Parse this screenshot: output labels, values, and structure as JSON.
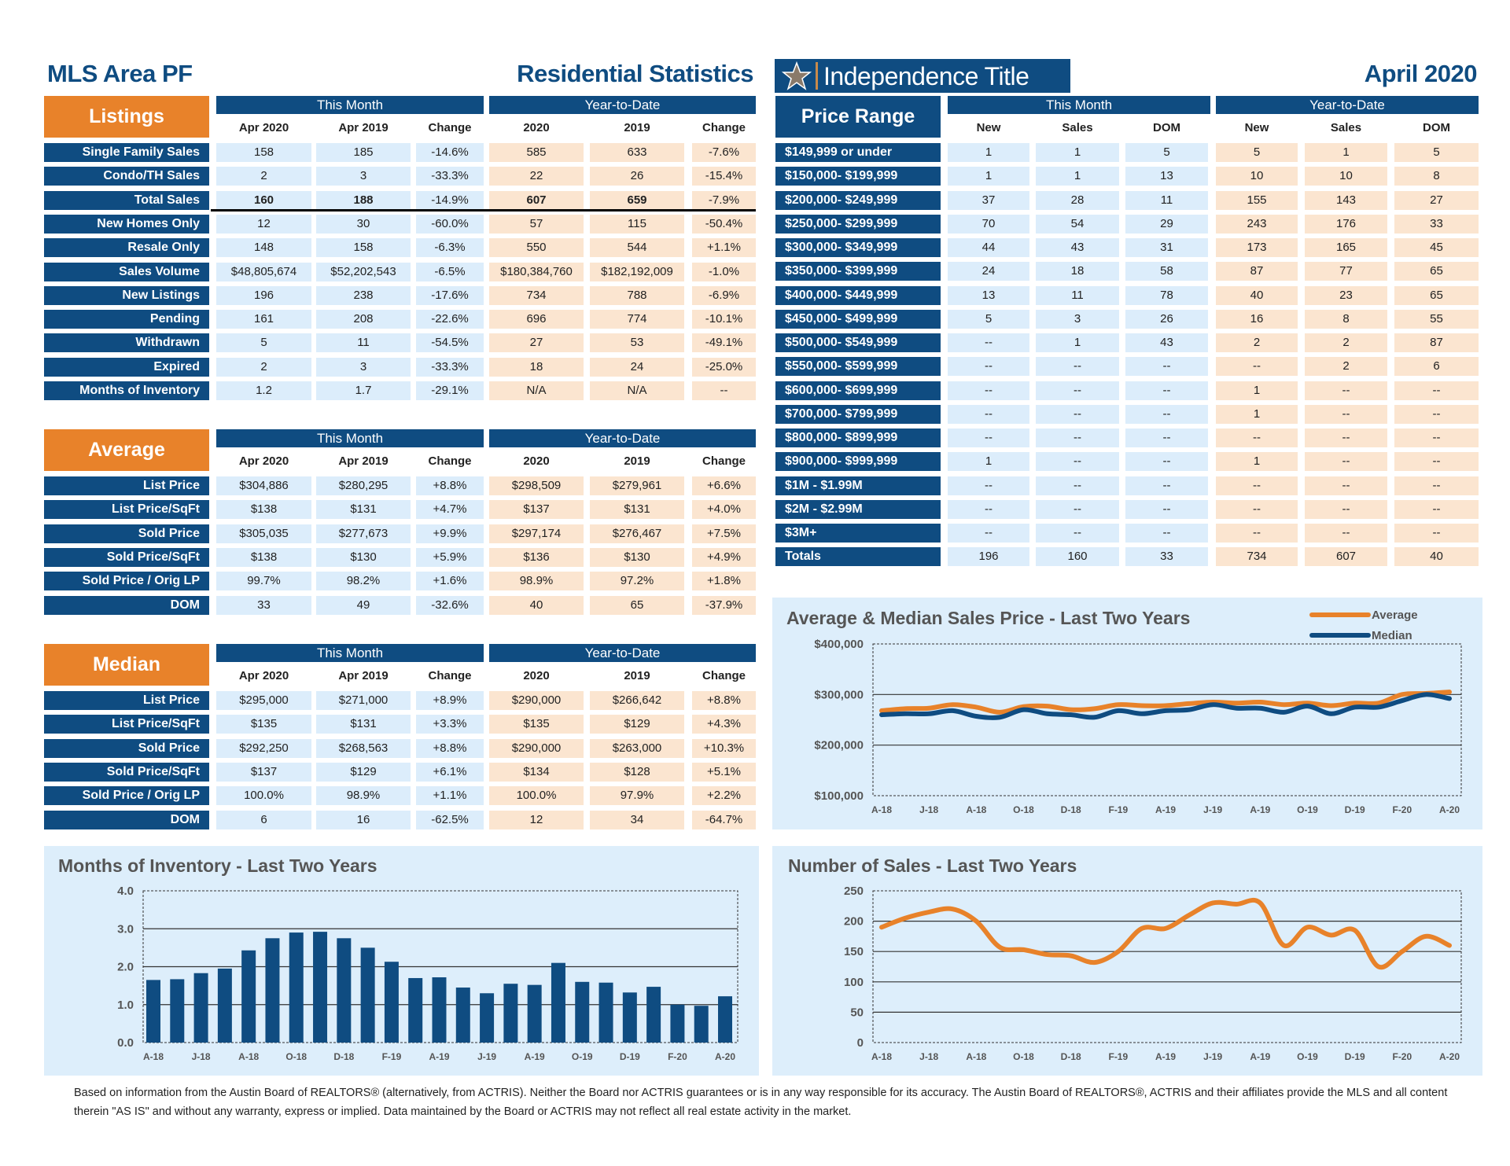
{
  "header": {
    "area": "MLS Area PF",
    "title": "Residential Statistics",
    "brand": "Independence Title",
    "period": "April 2020"
  },
  "colors": {
    "navy": "#0f4c81",
    "orange": "#e8822a",
    "this_month_cell": "#dcedfb",
    "ytd_cell": "#fbe5d0",
    "panel": "#ddeefb"
  },
  "listings": {
    "title": "Listings",
    "groups": [
      "This Month",
      "Year-to-Date"
    ],
    "columns": [
      "Apr 2020",
      "Apr 2019",
      "Change",
      "2020",
      "2019",
      "Change"
    ],
    "rows": [
      {
        "label": "Single Family Sales",
        "values": [
          "158",
          "185",
          "-14.6%",
          "585",
          "633",
          "-7.6%"
        ]
      },
      {
        "label": "Condo/TH Sales",
        "values": [
          "2",
          "3",
          "-33.3%",
          "22",
          "26",
          "-15.4%"
        ]
      },
      {
        "label": "Total Sales",
        "values": [
          "160",
          "188",
          "-14.9%",
          "607",
          "659",
          "-7.9%"
        ]
      },
      {
        "label": "New Homes Only",
        "values": [
          "12",
          "30",
          "-60.0%",
          "57",
          "115",
          "-50.4%"
        ]
      },
      {
        "label": "Resale Only",
        "values": [
          "148",
          "158",
          "-6.3%",
          "550",
          "544",
          "+1.1%"
        ]
      },
      {
        "label": "Sales Volume",
        "values": [
          "$48,805,674",
          "$52,202,543",
          "-6.5%",
          "$180,384,760",
          "$182,192,009",
          "-1.0%"
        ]
      },
      {
        "label": "New Listings",
        "values": [
          "196",
          "238",
          "-17.6%",
          "734",
          "788",
          "-6.9%"
        ]
      },
      {
        "label": "Pending",
        "values": [
          "161",
          "208",
          "-22.6%",
          "696",
          "774",
          "-10.1%"
        ]
      },
      {
        "label": "Withdrawn",
        "values": [
          "5",
          "11",
          "-54.5%",
          "27",
          "53",
          "-49.1%"
        ]
      },
      {
        "label": "Expired",
        "values": [
          "2",
          "3",
          "-33.3%",
          "18",
          "24",
          "-25.0%"
        ]
      },
      {
        "label": "Months of Inventory",
        "values": [
          "1.2",
          "1.7",
          "-29.1%",
          "N/A",
          "N/A",
          "--"
        ]
      }
    ]
  },
  "average": {
    "title": "Average",
    "groups": [
      "This Month",
      "Year-to-Date"
    ],
    "columns": [
      "Apr 2020",
      "Apr 2019",
      "Change",
      "2020",
      "2019",
      "Change"
    ],
    "rows": [
      {
        "label": "List Price",
        "values": [
          "$304,886",
          "$280,295",
          "+8.8%",
          "$298,509",
          "$279,961",
          "+6.6%"
        ]
      },
      {
        "label": "List Price/SqFt",
        "values": [
          "$138",
          "$131",
          "+4.7%",
          "$137",
          "$131",
          "+4.0%"
        ]
      },
      {
        "label": "Sold Price",
        "values": [
          "$305,035",
          "$277,673",
          "+9.9%",
          "$297,174",
          "$276,467",
          "+7.5%"
        ]
      },
      {
        "label": "Sold Price/SqFt",
        "values": [
          "$138",
          "$130",
          "+5.9%",
          "$136",
          "$130",
          "+4.9%"
        ]
      },
      {
        "label": "Sold Price / Orig LP",
        "values": [
          "99.7%",
          "98.2%",
          "+1.6%",
          "98.9%",
          "97.2%",
          "+1.8%"
        ]
      },
      {
        "label": "DOM",
        "values": [
          "33",
          "49",
          "-32.6%",
          "40",
          "65",
          "-37.9%"
        ]
      }
    ]
  },
  "median": {
    "title": "Median",
    "groups": [
      "This Month",
      "Year-to-Date"
    ],
    "columns": [
      "Apr 2020",
      "Apr 2019",
      "Change",
      "2020",
      "2019",
      "Change"
    ],
    "rows": [
      {
        "label": "List Price",
        "values": [
          "$295,000",
          "$271,000",
          "+8.9%",
          "$290,000",
          "$266,642",
          "+8.8%"
        ]
      },
      {
        "label": "List Price/SqFt",
        "values": [
          "$135",
          "$131",
          "+3.3%",
          "$135",
          "$129",
          "+4.3%"
        ]
      },
      {
        "label": "Sold Price",
        "values": [
          "$292,250",
          "$268,563",
          "+8.8%",
          "$290,000",
          "$263,000",
          "+10.3%"
        ]
      },
      {
        "label": "Sold Price/SqFt",
        "values": [
          "$137",
          "$129",
          "+6.1%",
          "$134",
          "$128",
          "+5.1%"
        ]
      },
      {
        "label": "Sold Price / Orig LP",
        "values": [
          "100.0%",
          "98.9%",
          "+1.1%",
          "100.0%",
          "97.9%",
          "+2.2%"
        ]
      },
      {
        "label": "DOM",
        "values": [
          "6",
          "16",
          "-62.5%",
          "12",
          "34",
          "-64.7%"
        ]
      }
    ]
  },
  "price_range": {
    "title": "Price Range",
    "groups": [
      "This Month",
      "Year-to-Date"
    ],
    "columns": [
      "New",
      "Sales",
      "DOM",
      "New",
      "Sales",
      "DOM"
    ],
    "rows": [
      {
        "label": "$149,999 or under",
        "values": [
          "1",
          "1",
          "5",
          "5",
          "1",
          "5"
        ]
      },
      {
        "label": "$150,000- $199,999",
        "values": [
          "1",
          "1",
          "13",
          "10",
          "10",
          "8"
        ]
      },
      {
        "label": "$200,000- $249,999",
        "values": [
          "37",
          "28",
          "11",
          "155",
          "143",
          "27"
        ]
      },
      {
        "label": "$250,000- $299,999",
        "values": [
          "70",
          "54",
          "29",
          "243",
          "176",
          "33"
        ]
      },
      {
        "label": "$300,000- $349,999",
        "values": [
          "44",
          "43",
          "31",
          "173",
          "165",
          "45"
        ]
      },
      {
        "label": "$350,000- $399,999",
        "values": [
          "24",
          "18",
          "58",
          "87",
          "77",
          "65"
        ]
      },
      {
        "label": "$400,000- $449,999",
        "values": [
          "13",
          "11",
          "78",
          "40",
          "23",
          "65"
        ]
      },
      {
        "label": "$450,000- $499,999",
        "values": [
          "5",
          "3",
          "26",
          "16",
          "8",
          "55"
        ]
      },
      {
        "label": "$500,000- $549,999",
        "values": [
          "--",
          "1",
          "43",
          "2",
          "2",
          "87"
        ]
      },
      {
        "label": "$550,000- $599,999",
        "values": [
          "--",
          "--",
          "--",
          "--",
          "2",
          "6"
        ]
      },
      {
        "label": "$600,000- $699,999",
        "values": [
          "--",
          "--",
          "--",
          "1",
          "--",
          "--"
        ]
      },
      {
        "label": "$700,000- $799,999",
        "values": [
          "--",
          "--",
          "--",
          "1",
          "--",
          "--"
        ]
      },
      {
        "label": "$800,000- $899,999",
        "values": [
          "--",
          "--",
          "--",
          "--",
          "--",
          "--"
        ]
      },
      {
        "label": "$900,000- $999,999",
        "values": [
          "1",
          "--",
          "--",
          "1",
          "--",
          "--"
        ]
      },
      {
        "label": "$1M - $1.99M",
        "values": [
          "--",
          "--",
          "--",
          "--",
          "--",
          "--"
        ]
      },
      {
        "label": "$2M - $2.99M",
        "values": [
          "--",
          "--",
          "--",
          "--",
          "--",
          "--"
        ]
      },
      {
        "label": "$3M+",
        "values": [
          "--",
          "--",
          "--",
          "--",
          "--",
          "--"
        ]
      },
      {
        "label": "Totals",
        "values": [
          "196",
          "160",
          "33",
          "734",
          "607",
          "40"
        ]
      }
    ]
  },
  "chart_data": [
    {
      "type": "line",
      "title": "Average & Median Sales Price - Last Two Years",
      "x": [
        "Apr 2018",
        "May 2018",
        "Jun 2018",
        "Jul 2018",
        "Aug 2018",
        "Sep 2018",
        "Oct 2018",
        "Nov 2018",
        "Dec 2018",
        "Jan 2019",
        "Feb 2019",
        "Mar 2019",
        "Apr 2019",
        "May 2019",
        "Jun 2019",
        "Jul 2019",
        "Aug 2019",
        "Sep 2019",
        "Oct 2019",
        "Nov 2019",
        "Dec 2019",
        "Jan 2020",
        "Feb 2020",
        "Mar 2020",
        "Apr 2020"
      ],
      "xtick_labels": [
        "A-18",
        "J-18",
        "A-18",
        "O-18",
        "D-18",
        "F-19",
        "A-19",
        "J-19",
        "A-19",
        "O-19",
        "D-19",
        "F-20",
        "A-20"
      ],
      "ytick_labels": [
        "$400,000",
        "$300,000",
        "$200,000",
        "$100,000"
      ],
      "ylim": [
        100000,
        400000
      ],
      "grid": true,
      "legend": "top-right",
      "series": [
        {
          "name": "Average",
          "color": "#e8822a",
          "values": [
            268000,
            272000,
            273000,
            280000,
            275000,
            265000,
            276000,
            277000,
            270000,
            272000,
            280000,
            278000,
            278000,
            282000,
            285000,
            283000,
            285000,
            280000,
            283000,
            278000,
            283000,
            283000,
            300000,
            302000,
            305000
          ]
        },
        {
          "name": "Median",
          "color": "#0f4c81",
          "values": [
            260000,
            262000,
            262000,
            268000,
            257000,
            255000,
            270000,
            262000,
            260000,
            255000,
            268000,
            262000,
            268000,
            270000,
            280000,
            273000,
            273000,
            265000,
            277000,
            262000,
            275000,
            275000,
            288000,
            300000,
            292000
          ]
        }
      ]
    },
    {
      "type": "bar",
      "title": "Months of Inventory - Last Two Years",
      "categories": [
        "Apr 2018",
        "May 2018",
        "Jun 2018",
        "Jul 2018",
        "Aug 2018",
        "Sep 2018",
        "Oct 2018",
        "Nov 2018",
        "Dec 2018",
        "Jan 2019",
        "Feb 2019",
        "Mar 2019",
        "Apr 2019",
        "May 2019",
        "Jun 2019",
        "Jul 2019",
        "Aug 2019",
        "Sep 2019",
        "Oct 2019",
        "Nov 2019",
        "Dec 2019",
        "Jan 2020",
        "Feb 2020",
        "Mar 2020",
        "Apr 2020"
      ],
      "xtick_labels": [
        "A-18",
        "J-18",
        "A-18",
        "O-18",
        "D-18",
        "F-19",
        "A-19",
        "J-19",
        "A-19",
        "O-19",
        "D-19",
        "F-20",
        "A-20"
      ],
      "ytick_labels": [
        "4.0",
        "3.0",
        "2.0",
        "1.0",
        "0.0"
      ],
      "values": [
        1.65,
        1.67,
        1.83,
        1.95,
        2.43,
        2.75,
        2.9,
        2.92,
        2.75,
        2.5,
        2.13,
        1.7,
        1.72,
        1.45,
        1.3,
        1.55,
        1.52,
        2.1,
        1.6,
        1.58,
        1.32,
        1.47,
        1.0,
        0.97,
        1.22
      ],
      "ylim": [
        0,
        4
      ],
      "grid": true,
      "color": "#0f4c81"
    },
    {
      "type": "line",
      "title": "Number of Sales - Last Two Years",
      "x": [
        "Apr 2018",
        "May 2018",
        "Jun 2018",
        "Jul 2018",
        "Aug 2018",
        "Sep 2018",
        "Oct 2018",
        "Nov 2018",
        "Dec 2018",
        "Jan 2019",
        "Feb 2019",
        "Mar 2019",
        "Apr 2019",
        "May 2019",
        "Jun 2019",
        "Jul 2019",
        "Aug 2019",
        "Sep 2019",
        "Oct 2019",
        "Nov 2019",
        "Dec 2019",
        "Jan 2020",
        "Feb 2020",
        "Mar 2020",
        "Apr 2020"
      ],
      "xtick_labels": [
        "A-18",
        "J-18",
        "A-18",
        "O-18",
        "D-18",
        "F-19",
        "A-19",
        "J-19",
        "A-19",
        "O-19",
        "D-19",
        "F-20",
        "A-20"
      ],
      "ytick_labels": [
        "250",
        "200",
        "150",
        "100",
        "50",
        "0"
      ],
      "ylim": [
        0,
        250
      ],
      "grid": true,
      "series": [
        {
          "color": "#e8822a",
          "values": [
            190,
            205,
            215,
            220,
            200,
            157,
            153,
            145,
            143,
            132,
            150,
            188,
            188,
            210,
            230,
            228,
            230,
            160,
            190,
            177,
            185,
            125,
            150,
            175,
            160
          ]
        }
      ]
    }
  ],
  "footer": "Based on information from the Austin Board of REALTORS® (alternatively, from ACTRIS). Neither the Board nor ACTRIS guarantees or is in any way responsible for its accuracy. The Austin Board of REALTORS®, ACTRIS and their affiliates provide the MLS and all content therein \"AS IS\" and without any warranty, express or implied. Data maintained by the Board or ACTRIS may not reflect all real estate activity in the market."
}
